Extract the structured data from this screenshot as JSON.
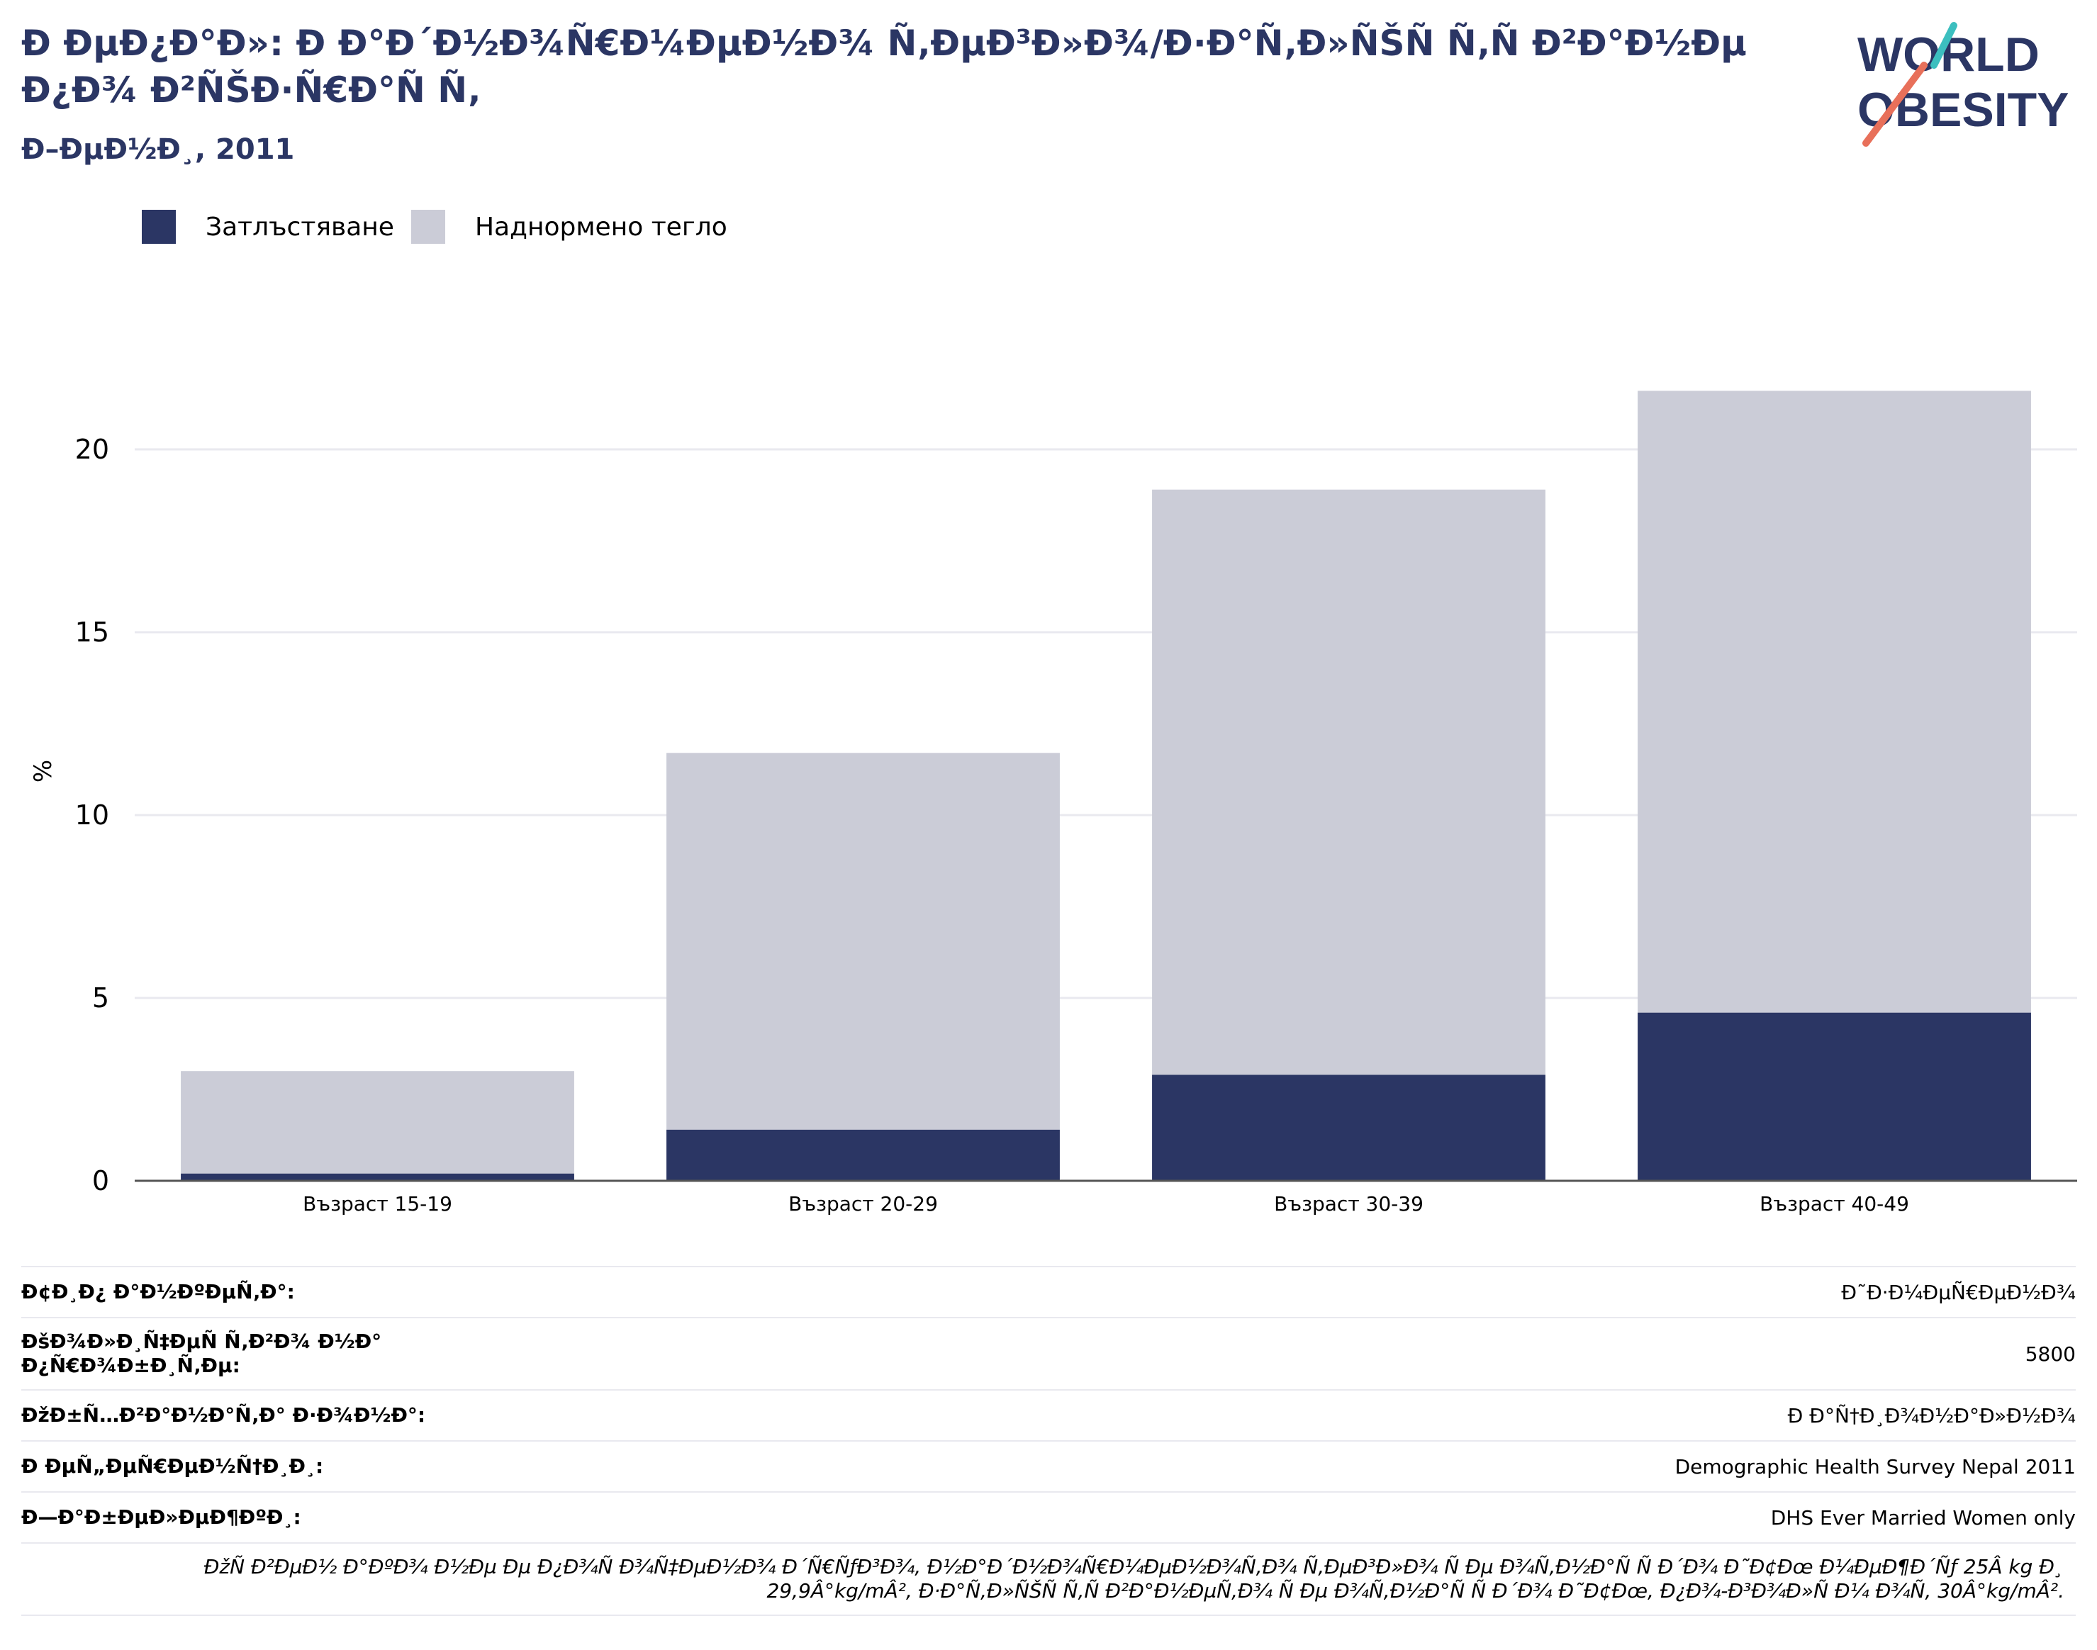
{
  "header": {
    "title": "Ð ÐµÐ¿Ð°Ð»: Ð Ð°Ð´Ð½Ð¾Ñ€Ð¼ÐµÐ½Ð¾ Ñ‚ÐµÐ³Ð»Ð¾/Ð·Ð°Ñ‚Ð»ÑŠÑ Ñ‚Ñ Ð²Ð°Ð½Ðµ Ð¿Ð¾ Ð²ÑŠÐ·Ñ€Ð°Ñ Ñ‚",
    "subtitle": "Ð–ÐµÐ½Ð¸, 2011"
  },
  "logo": {
    "line1": "WORLD",
    "line2": "OBESITY",
    "text_color": "#2b3664",
    "accent_teal": "#3cbfbf",
    "accent_coral": "#e8705a"
  },
  "colors": {
    "obesity": "#2b3664",
    "overweight": "#cbccd7",
    "grid": "#e9e9ef",
    "axis": "#555555"
  },
  "chart_data": {
    "type": "bar",
    "stacked": true,
    "categories": [
      "Възраст 15-19",
      "Възраст 20-29",
      "Възраст 30-39",
      "Възраст 40-49"
    ],
    "series": [
      {
        "name": "Затлъстяване",
        "values": [
          0.2,
          1.4,
          2.9,
          4.6
        ],
        "color": "#2b3664"
      },
      {
        "name": "Наднормено тегло",
        "values": [
          2.8,
          10.3,
          16.0,
          17.0
        ],
        "color": "#cbccd7"
      }
    ],
    "ylabel": "%",
    "ylim": [
      0,
      22.5
    ],
    "yticks": [
      0,
      5,
      10,
      15,
      20
    ],
    "grid": true,
    "legend": "top-left"
  },
  "meta": {
    "rows": [
      {
        "label": "Ð¢Ð¸Ð¿ Ð°Ð½ÐºÐµÑ‚Ð°:",
        "value": "Ð˜Ð·Ð¼ÐµÑ€ÐµÐ½Ð¾"
      },
      {
        "label": "ÐšÐ¾Ð»Ð¸Ñ‡ÐµÑ Ñ‚Ð²Ð¾ Ð½Ð° Ð¿Ñ€Ð¾Ð±Ð¸Ñ‚Ðµ:",
        "value": "5800"
      },
      {
        "label": "ÐžÐ±Ñ…Ð²Ð°Ð½Ð°Ñ‚Ð° Ð·Ð¾Ð½Ð°:",
        "value": "Ð Ð°Ñ†Ð¸Ð¾Ð½Ð°Ð»Ð½Ð¾"
      },
      {
        "label": "Ð ÐµÑ„ÐµÑ€ÐµÐ½Ñ†Ð¸Ð¸:",
        "value": "Demographic Health Survey Nepal 2011"
      },
      {
        "label": "Ð—Ð°Ð±ÐµÐ»ÐµÐ¶ÐºÐ¸:",
        "value": "DHS Ever Married Women only"
      }
    ],
    "note": "ÐžÑ Ð²ÐµÐ½ Ð°ÐºÐ¾ Ð½Ðµ Ðµ Ð¿Ð¾Ñ Ð¾Ñ‡ÐµÐ½Ð¾ Ð´Ñ€ÑƒÐ³Ð¾, Ð½Ð°Ð´Ð½Ð¾Ñ€Ð¼ÐµÐ½Ð¾Ñ‚Ð¾ Ñ‚ÐµÐ³Ð»Ð¾ Ñ Ðµ Ð¾Ñ‚Ð½Ð°Ñ Ñ  Ð´Ð¾ Ð˜Ð¢Ðœ Ð¼ÐµÐ¶Ð´Ñƒ 25Â kg Ð¸ 29,9Â°kg/mÂ², Ð·Ð°Ñ‚Ð»ÑŠÑ Ñ‚Ñ Ð²Ð°Ð½ÐµÑ‚Ð¾ Ñ Ðµ Ð¾Ñ‚Ð½Ð°Ñ Ñ  Ð´Ð¾ Ð˜Ð¢Ðœ, Ð¿Ð¾-Ð³Ð¾Ð»Ñ Ð¼ Ð¾Ñ‚ 30Â°kg/mÂ²."
  }
}
